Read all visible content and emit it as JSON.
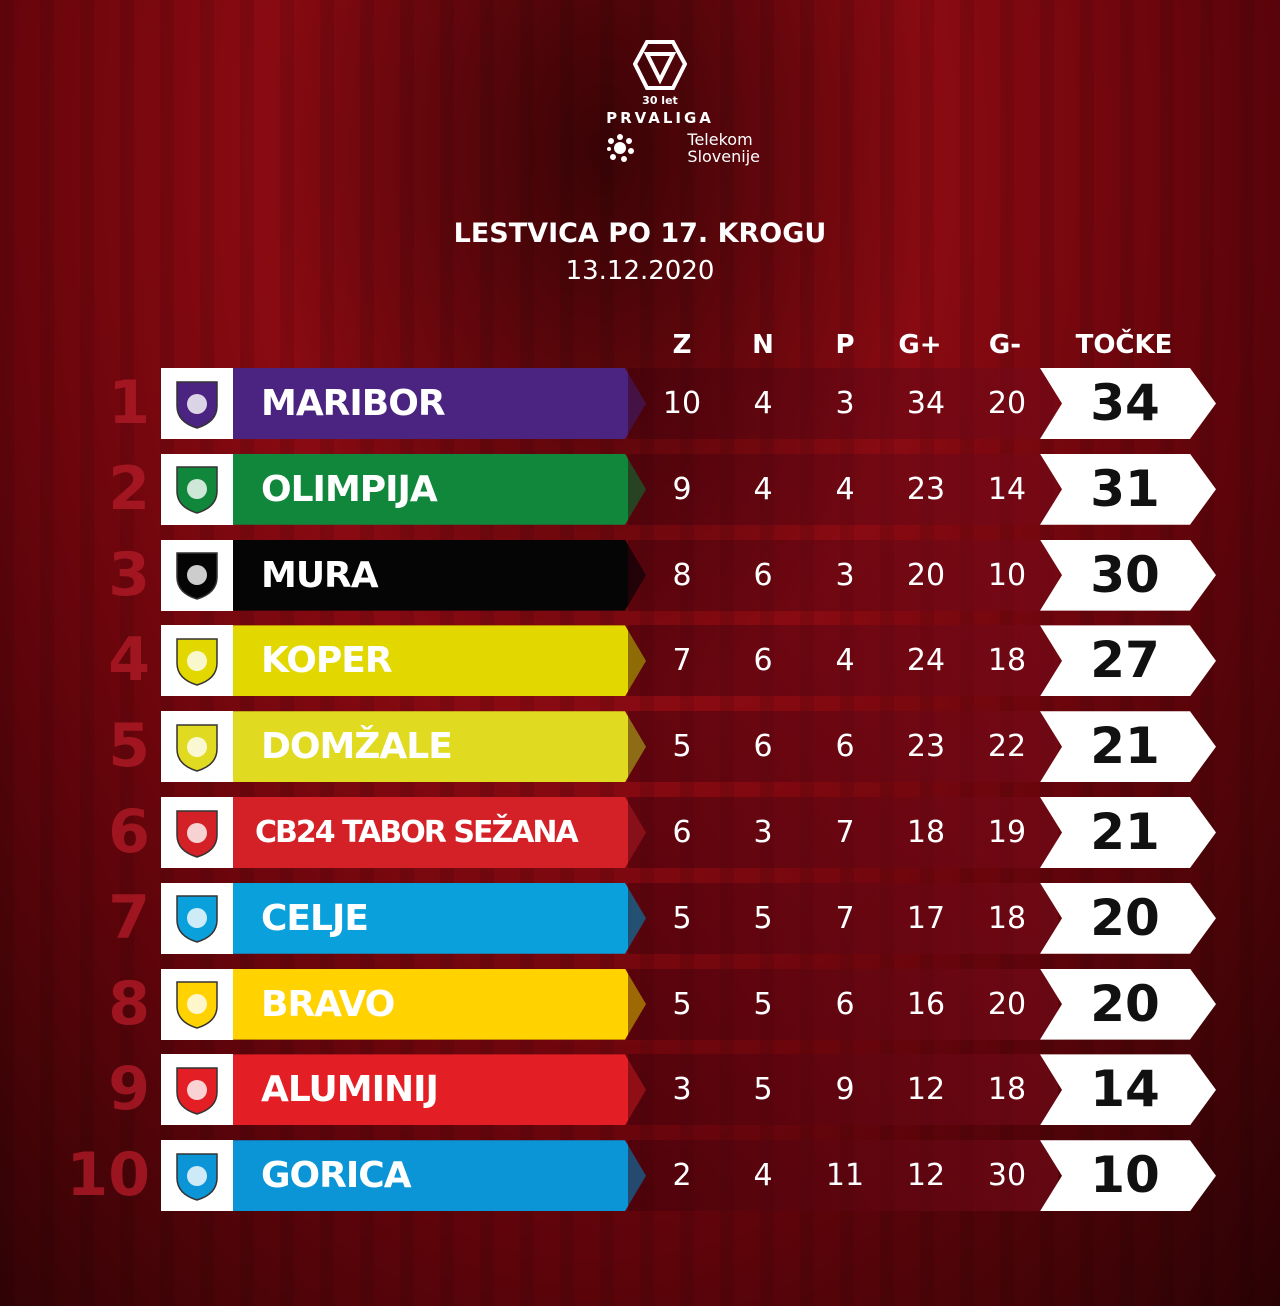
{
  "league": {
    "years": "30 let",
    "name": "PRVALIGA",
    "sponsor_line1": "Telekom",
    "sponsor_line2": "Slovenije"
  },
  "title": "LESTVICA PO 17. KROGU",
  "date": "13.12.2020",
  "columns": [
    "Z",
    "N",
    "P",
    "G+",
    "G-",
    "TOČKE"
  ],
  "teams": [
    {
      "rank": "1",
      "name": "MARIBOR",
      "color": "#4b2380",
      "text": "#ffffff",
      "z": "10",
      "n": "4",
      "p": "3",
      "gf": "34",
      "ga": "20",
      "pts": "34"
    },
    {
      "rank": "2",
      "name": "OLIMPIJA",
      "color": "#10873a",
      "text": "#ffffff",
      "z": "9",
      "n": "4",
      "p": "4",
      "gf": "23",
      "ga": "14",
      "pts": "31"
    },
    {
      "rank": "3",
      "name": "MURA",
      "color": "#050505",
      "text": "#ffffff",
      "z": "8",
      "n": "6",
      "p": "3",
      "gf": "20",
      "ga": "10",
      "pts": "30"
    },
    {
      "rank": "4",
      "name": "KOPER",
      "color": "#e2d800",
      "text": "#ffffff",
      "z": "7",
      "n": "6",
      "p": "4",
      "gf": "24",
      "ga": "18",
      "pts": "27"
    },
    {
      "rank": "5",
      "name": "DOMŽALE",
      "color": "#e0da20",
      "text": "#ffffff",
      "z": "5",
      "n": "6",
      "p": "6",
      "gf": "23",
      "ga": "22",
      "pts": "21"
    },
    {
      "rank": "6",
      "name": "CB24 TABOR SEŽANA",
      "color": "#d42027",
      "text": "#ffffff",
      "z": "6",
      "n": "3",
      "p": "7",
      "gf": "18",
      "ga": "19",
      "pts": "21"
    },
    {
      "rank": "7",
      "name": "CELJE",
      "color": "#0aa0dc",
      "text": "#ffffff",
      "z": "5",
      "n": "5",
      "p": "7",
      "gf": "17",
      "ga": "18",
      "pts": "20"
    },
    {
      "rank": "8",
      "name": "BRAVO",
      "color": "#ffd200",
      "text": "#ffffff",
      "z": "5",
      "n": "5",
      "p": "6",
      "gf": "16",
      "ga": "20",
      "pts": "20"
    },
    {
      "rank": "9",
      "name": "ALUMINIJ",
      "color": "#e31e24",
      "text": "#ffffff",
      "z": "3",
      "n": "5",
      "p": "9",
      "gf": "12",
      "ga": "18",
      "pts": "14"
    },
    {
      "rank": "10",
      "name": "GORICA",
      "color": "#0b94d6",
      "text": "#ffffff",
      "z": "2",
      "n": "4",
      "p": "11",
      "gf": "12",
      "ga": "30",
      "pts": "10"
    }
  ]
}
